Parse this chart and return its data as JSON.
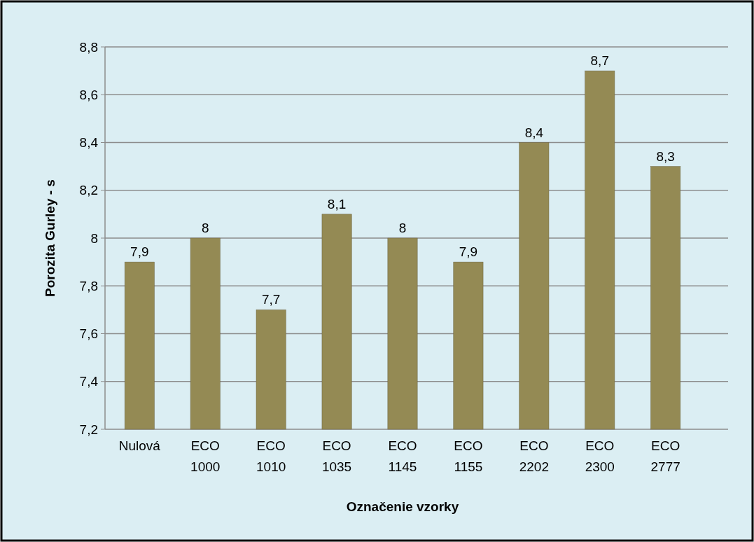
{
  "chart_data": {
    "type": "bar",
    "xlabel": "Označenie vzorky",
    "ylabel": "Porozita Gurley - s",
    "categories": [
      "Nulová",
      "ECO 1000",
      "ECO 1010",
      "ECO 1035",
      "ECO 1145",
      "ECO 1155",
      "ECO 2202",
      "ECO 2300",
      "ECO 2777"
    ],
    "values": [
      7.9,
      8,
      7.7,
      8.1,
      8,
      7.9,
      8.4,
      8.7,
      8.3
    ],
    "value_labels": [
      "7,9",
      "8",
      "7,7",
      "8,1",
      "8",
      "7,9",
      "8,4",
      "8,7",
      "8,3"
    ],
    "color": "#948a54",
    "ylim": [
      7.2,
      8.8
    ],
    "yticks": [
      {
        "value": 7.2,
        "label": "7,2"
      },
      {
        "value": 7.4,
        "label": "7,4"
      },
      {
        "value": 7.6,
        "label": "7,6"
      },
      {
        "value": 7.8,
        "label": "7,8"
      },
      {
        "value": 8,
        "label": "8"
      },
      {
        "value": 8.2,
        "label": "8,2"
      },
      {
        "value": 8.4,
        "label": "8,4"
      },
      {
        "value": 8.6,
        "label": "8,6"
      },
      {
        "value": 8.8,
        "label": "8,8"
      }
    ],
    "grid": "y"
  }
}
